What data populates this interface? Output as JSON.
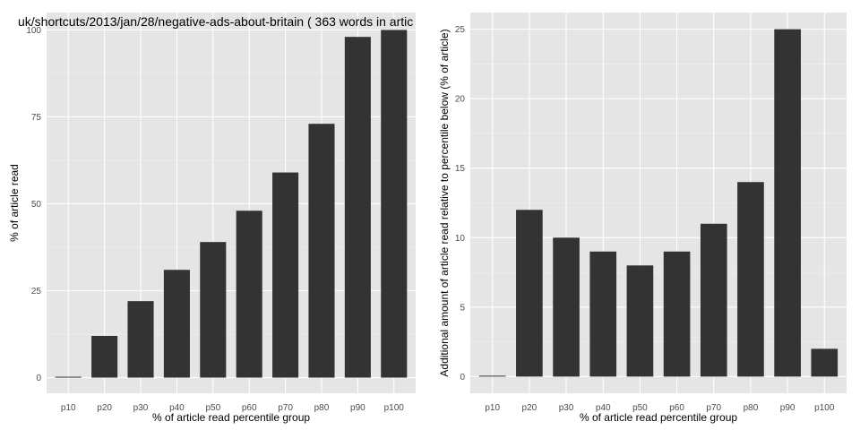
{
  "colors": {
    "panel_background": "#e5e5e5",
    "gridline": "#ffffff",
    "bar_fill": "#333333",
    "tick_text": "#4d4d4d"
  },
  "chart_data": [
    {
      "type": "bar",
      "title": "uk/shortcuts/2013/jan/28/negative-ads-about-britain ( 363 words in artic",
      "xlabel": "% of article read percentile group",
      "ylabel": "% of article read",
      "categories": [
        "p10",
        "p20",
        "p30",
        "p40",
        "p50",
        "p60",
        "p70",
        "p80",
        "p90",
        "p100"
      ],
      "values": [
        0,
        12,
        22,
        31,
        39,
        48,
        59,
        73,
        98,
        100
      ],
      "ylim": [
        -4.5,
        105
      ],
      "yticks": [
        0,
        25,
        50,
        75,
        100
      ],
      "grid": true
    },
    {
      "type": "bar",
      "title": "",
      "xlabel": "% of article read percentile group",
      "ylabel": "Additional amount of article read relative to percentile below (% of article)",
      "categories": [
        "p10",
        "p20",
        "p30",
        "p40",
        "p50",
        "p60",
        "p70",
        "p80",
        "p90",
        "p100"
      ],
      "values": [
        0,
        12,
        10,
        9,
        8,
        9,
        11,
        14,
        25,
        2
      ],
      "ylim": [
        -1.2,
        26.2
      ],
      "yticks": [
        0,
        5,
        10,
        15,
        20,
        25
      ],
      "grid": true
    }
  ]
}
